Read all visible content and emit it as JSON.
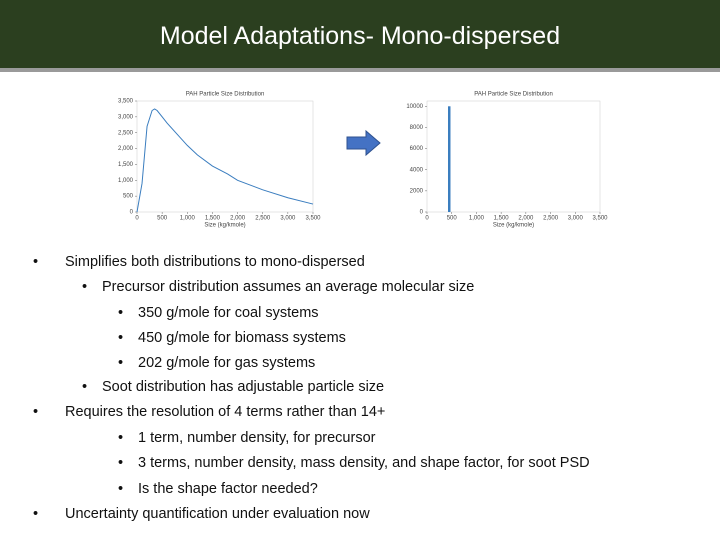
{
  "header": {
    "title": "Model Adaptations- Mono-dispersed"
  },
  "chart_data": [
    {
      "type": "line",
      "title": "PAH Particle Size Distribution",
      "xlabel": "Size (kg/kmole)",
      "x": [
        0,
        100,
        200,
        300,
        350,
        400,
        500,
        600,
        800,
        1000,
        1200,
        1500,
        1800,
        2000,
        2500,
        3000,
        3500
      ],
      "values": [
        0,
        900,
        2700,
        3200,
        3250,
        3200,
        3000,
        2800,
        2450,
        2100,
        1800,
        1450,
        1200,
        1000,
        700,
        450,
        250
      ],
      "color": "#3a7dbf",
      "xlim": [
        0,
        3500
      ],
      "xticks": [
        0,
        500,
        {
          "value": 1000,
          "label": "1,000"
        },
        {
          "value": 1500,
          "label": "1,500"
        },
        {
          "value": 2000,
          "label": "2,000"
        },
        {
          "value": 2500,
          "label": "2,500"
        },
        {
          "value": 3000,
          "label": "3,000"
        },
        {
          "value": 3500,
          "label": "3,500"
        }
      ],
      "ylim": [
        0,
        3500
      ],
      "yticks": [
        0,
        500,
        {
          "value": 1000,
          "label": "1,000"
        },
        {
          "value": 1500,
          "label": "1,500"
        },
        {
          "value": 2000,
          "label": "2,000"
        },
        {
          "value": 2500,
          "label": "2,500"
        },
        {
          "value": 3000,
          "label": "3,000"
        },
        {
          "value": 3500,
          "label": "3,500"
        }
      ]
    },
    {
      "type": "histogram",
      "title": "PAH Particle Size Distribution",
      "xlabel": "Size (kg/kmole)",
      "bins": [
        425,
        475
      ],
      "values": [
        10000
      ],
      "color": "#3a7dbf",
      "xlim": [
        0,
        3500
      ],
      "xticks": [
        0,
        500,
        {
          "value": 1000,
          "label": "1,000"
        },
        {
          "value": 1500,
          "label": "1,500"
        },
        {
          "value": 2000,
          "label": "2,000"
        },
        {
          "value": 2500,
          "label": "2,500"
        },
        {
          "value": 3000,
          "label": "3,000"
        },
        {
          "value": 3500,
          "label": "3,500"
        }
      ],
      "ylim": [
        0,
        10500
      ],
      "yticks": [
        0,
        2000,
        4000,
        6000,
        8000,
        10000
      ]
    }
  ],
  "bullets": [
    {
      "level": 1,
      "text": "Simplifies both distributions to mono-dispersed"
    },
    {
      "level": 2,
      "text": "Precursor distribution assumes an average molecular size"
    },
    {
      "level": 3,
      "text": "350 g/mole for coal systems"
    },
    {
      "level": 3,
      "text": "450 g/mole for biomass systems"
    },
    {
      "level": 3,
      "text": "202 g/mole for gas systems"
    },
    {
      "level": 2,
      "text": "Soot distribution has adjustable particle size"
    },
    {
      "level": 1,
      "text": "Requires the resolution of 4 terms rather than 14+"
    },
    {
      "level": 3,
      "text": "1 term, number density, for precursor"
    },
    {
      "level": 3,
      "text": "3 terms, number density, mass density, and shape factor, for soot PSD"
    },
    {
      "level": 3,
      "text": "Is the shape factor needed?"
    },
    {
      "level": 1,
      "text": "Uncertainty quantification under evaluation now"
    }
  ]
}
